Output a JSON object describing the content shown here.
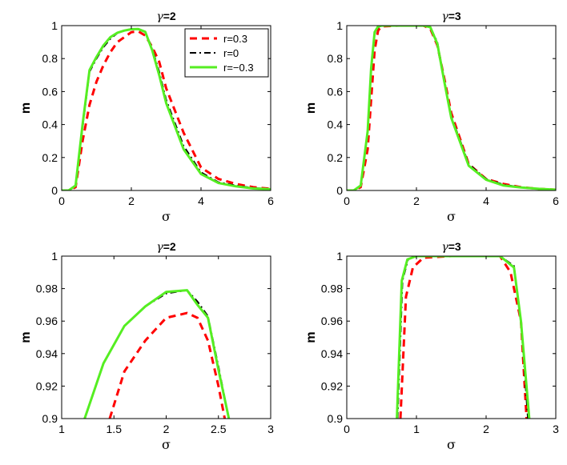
{
  "chart_data": [
    {
      "type": "line",
      "title_symbol": "γ",
      "title_value": "=2",
      "xlabel": "σ",
      "ylabel": "m",
      "xlim": [
        0,
        6
      ],
      "ylim": [
        0,
        1
      ],
      "xticks": [
        "0",
        "2",
        "4",
        "6"
      ],
      "yticks": [
        "0",
        "0.2",
        "0.4",
        "0.6",
        "0.8",
        "1"
      ],
      "legend": {
        "position": "top-right",
        "entries": [
          "r=0.3",
          "r=0",
          "r=−0.3"
        ]
      },
      "series": [
        {
          "name": "r=0.3",
          "color": "#ff0000",
          "style": "dashed",
          "x": [
            0,
            0.2,
            0.4,
            0.6,
            0.8,
            1.0,
            1.2,
            1.4,
            1.6,
            1.8,
            2.0,
            2.2,
            2.4,
            2.6,
            2.8,
            3.0,
            3.5,
            4.0,
            4.5,
            5.0,
            5.5,
            6.0
          ],
          "y": [
            0,
            0.0,
            0.02,
            0.3,
            0.52,
            0.66,
            0.76,
            0.84,
            0.9,
            0.93,
            0.96,
            0.965,
            0.94,
            0.87,
            0.78,
            0.62,
            0.35,
            0.14,
            0.07,
            0.04,
            0.02,
            0.01
          ]
        },
        {
          "name": "r=0",
          "color": "#000000",
          "style": "dashdot",
          "x": [
            0,
            0.2,
            0.4,
            0.6,
            0.8,
            1.0,
            1.2,
            1.4,
            1.6,
            1.8,
            2.0,
            2.2,
            2.4,
            2.6,
            2.8,
            3.0,
            3.5,
            4.0,
            4.5,
            5.0,
            5.5,
            6.0
          ],
          "y": [
            0,
            0.0,
            0.03,
            0.38,
            0.72,
            0.8,
            0.87,
            0.92,
            0.955,
            0.97,
            0.978,
            0.979,
            0.962,
            0.86,
            0.72,
            0.55,
            0.27,
            0.11,
            0.05,
            0.03,
            0.015,
            0.01
          ]
        },
        {
          "name": "r=−0.3",
          "color": "#55ee22",
          "style": "solid",
          "x": [
            0,
            0.2,
            0.4,
            0.6,
            0.8,
            1.0,
            1.2,
            1.4,
            1.6,
            1.8,
            2.0,
            2.2,
            2.4,
            2.6,
            2.8,
            3.0,
            3.5,
            4.0,
            4.5,
            5.0,
            5.5,
            6.0
          ],
          "y": [
            0,
            0.0,
            0.03,
            0.4,
            0.73,
            0.81,
            0.88,
            0.93,
            0.957,
            0.97,
            0.978,
            0.979,
            0.962,
            0.85,
            0.7,
            0.53,
            0.25,
            0.1,
            0.045,
            0.025,
            0.012,
            0.008
          ]
        }
      ]
    },
    {
      "type": "line",
      "title_symbol": "γ",
      "title_value": "=3",
      "xlabel": "σ",
      "ylabel": "m",
      "xlim": [
        0,
        6
      ],
      "ylim": [
        0,
        1
      ],
      "xticks": [
        "0",
        "2",
        "4",
        "6"
      ],
      "yticks": [
        "0",
        "0.2",
        "0.4",
        "0.6",
        "0.8",
        "1"
      ],
      "series": [
        {
          "name": "r=0.3",
          "color": "#ff0000",
          "style": "dashed",
          "x": [
            0,
            0.2,
            0.4,
            0.6,
            0.7,
            0.8,
            0.9,
            1.0,
            1.5,
            2.0,
            2.2,
            2.4,
            2.6,
            2.8,
            3.0,
            3.5,
            4.0,
            4.5,
            5.0,
            5.5,
            6.0
          ],
          "y": [
            0,
            0.0,
            0.02,
            0.25,
            0.55,
            0.85,
            0.97,
            0.995,
            1.0,
            1.0,
            1.0,
            0.98,
            0.88,
            0.68,
            0.47,
            0.16,
            0.07,
            0.04,
            0.02,
            0.01,
            0.005
          ]
        },
        {
          "name": "r=0",
          "color": "#000000",
          "style": "dashdot",
          "x": [
            0,
            0.2,
            0.4,
            0.6,
            0.7,
            0.8,
            0.9,
            1.0,
            1.5,
            2.0,
            2.2,
            2.4,
            2.6,
            2.8,
            3.0,
            3.5,
            4.0,
            4.5,
            5.0,
            5.5,
            6.0
          ],
          "y": [
            0,
            0.0,
            0.03,
            0.35,
            0.72,
            0.95,
            0.99,
            1.0,
            1.0,
            1.0,
            1.0,
            0.99,
            0.9,
            0.67,
            0.45,
            0.16,
            0.07,
            0.035,
            0.02,
            0.01,
            0.005
          ]
        },
        {
          "name": "r=−0.3",
          "color": "#55ee22",
          "style": "solid",
          "x": [
            0,
            0.2,
            0.4,
            0.6,
            0.7,
            0.8,
            0.9,
            1.0,
            1.5,
            2.0,
            2.2,
            2.4,
            2.6,
            2.8,
            3.0,
            3.5,
            4.0,
            4.5,
            5.0,
            5.5,
            6.0
          ],
          "y": [
            0,
            0.0,
            0.03,
            0.36,
            0.74,
            0.96,
            0.995,
            1.0,
            1.0,
            1.0,
            1.0,
            0.99,
            0.89,
            0.66,
            0.44,
            0.15,
            0.065,
            0.03,
            0.018,
            0.01,
            0.005
          ]
        }
      ]
    },
    {
      "type": "line",
      "title_symbol": "γ",
      "title_value": "=2",
      "xlabel": "σ",
      "ylabel": "m",
      "xlim": [
        1,
        3
      ],
      "ylim": [
        0.9,
        1
      ],
      "xticks": [
        "1",
        "1.5",
        "2",
        "2.5",
        "3"
      ],
      "yticks": [
        "0.9",
        "0.92",
        "0.94",
        "0.96",
        "0.98",
        "1"
      ],
      "series": [
        {
          "name": "r=0.3",
          "color": "#ff0000",
          "style": "dashed",
          "x": [
            1.46,
            1.6,
            1.8,
            2.0,
            2.2,
            2.3,
            2.4,
            2.5,
            2.56
          ],
          "y": [
            0.9,
            0.929,
            0.948,
            0.962,
            0.965,
            0.962,
            0.948,
            0.92,
            0.9
          ]
        },
        {
          "name": "r=0",
          "color": "#000000",
          "style": "dashdot",
          "x": [
            1.22,
            1.4,
            1.6,
            1.8,
            2.0,
            2.2,
            2.3,
            2.4,
            2.5,
            2.6
          ],
          "y": [
            0.9,
            0.934,
            0.957,
            0.969,
            0.977,
            0.979,
            0.972,
            0.963,
            0.932,
            0.9
          ]
        },
        {
          "name": "r=−0.3",
          "color": "#55ee22",
          "style": "solid",
          "x": [
            1.22,
            1.4,
            1.6,
            1.8,
            2.0,
            2.2,
            2.3,
            2.4,
            2.5,
            2.6
          ],
          "y": [
            0.9,
            0.934,
            0.957,
            0.969,
            0.978,
            0.979,
            0.97,
            0.962,
            0.93,
            0.9
          ]
        }
      ]
    },
    {
      "type": "line",
      "title_symbol": "γ",
      "title_value": "=3",
      "xlabel": "σ",
      "ylabel": "m",
      "xlim": [
        0,
        3
      ],
      "ylim": [
        0.9,
        1
      ],
      "xticks": [
        "0",
        "1",
        "2",
        "3"
      ],
      "yticks": [
        "0.9",
        "0.92",
        "0.94",
        "0.96",
        "0.98",
        "1"
      ],
      "series": [
        {
          "name": "r=0.3",
          "color": "#ff0000",
          "style": "dashed",
          "x": [
            0.77,
            0.85,
            0.95,
            1.1,
            1.5,
            2.0,
            2.2,
            2.35,
            2.5,
            2.58
          ],
          "y": [
            0.9,
            0.975,
            0.993,
            0.999,
            1.0,
            1.0,
            1.0,
            0.99,
            0.96,
            0.9
          ]
        },
        {
          "name": "r=0",
          "color": "#000000",
          "style": "dashdot",
          "x": [
            0.73,
            0.8,
            0.88,
            1.0,
            1.5,
            2.0,
            2.2,
            2.4,
            2.5,
            2.6
          ],
          "y": [
            0.9,
            0.985,
            0.998,
            1.0,
            1.0,
            1.0,
            1.0,
            0.994,
            0.96,
            0.9
          ]
        },
        {
          "name": "r=−0.3",
          "color": "#55ee22",
          "style": "solid",
          "x": [
            0.72,
            0.79,
            0.87,
            1.0,
            1.5,
            2.0,
            2.2,
            2.4,
            2.5,
            2.62
          ],
          "y": [
            0.9,
            0.985,
            0.998,
            1.0,
            1.0,
            1.0,
            1.0,
            0.993,
            0.96,
            0.9
          ]
        }
      ]
    }
  ]
}
